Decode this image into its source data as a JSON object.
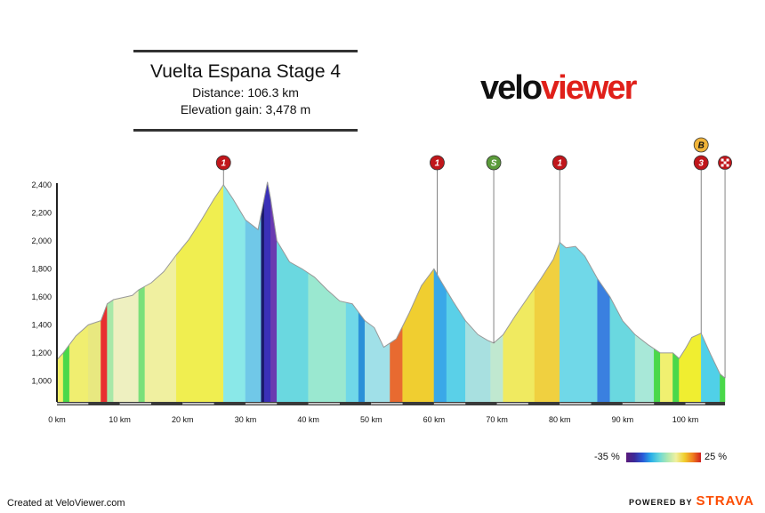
{
  "header": {
    "title": "Vuelta Espana Stage 4",
    "distance": "Distance: 106.3 km",
    "elevation": "Elevation gain: 3,478 m"
  },
  "brand": {
    "part1": "velo",
    "part2": "viewer"
  },
  "legend": {
    "min_label": "-35 %",
    "max_label": "25 %"
  },
  "footer": {
    "created": "Created at VeloViewer.com",
    "powered": "POWERED BY",
    "strava": "STRAVA"
  },
  "colors": {
    "kom_marker": "#c0161b",
    "sprint_marker": "#5a9a3a",
    "bonus_marker": "#f0b43a",
    "profile_outline": "#999999"
  },
  "chart_data": {
    "type": "area",
    "title": "",
    "xlabel": "",
    "ylabel": "",
    "xlim": [
      0,
      107
    ],
    "ylim": [
      850,
      2450
    ],
    "x_ticks": [
      0,
      10,
      20,
      30,
      40,
      50,
      60,
      70,
      80,
      90,
      100
    ],
    "x_tick_labels": [
      "0 km",
      "10 km",
      "20 km",
      "30 km",
      "40 km",
      "50 km",
      "60 km",
      "70 km",
      "80 km",
      "90 km",
      "100 km"
    ],
    "y_ticks": [
      1000,
      1200,
      1400,
      1600,
      1800,
      2000,
      2200,
      2400
    ],
    "y_tick_labels": [
      "1,000",
      "1,200",
      "1,400",
      "1,600",
      "1,800",
      "2,000",
      "2,200",
      "2,400"
    ],
    "profile": {
      "distance_km": [
        0,
        1,
        3,
        5,
        7,
        8,
        9,
        11,
        12,
        13,
        15,
        17,
        19,
        21,
        23,
        25,
        26.5,
        28,
        30,
        32,
        33.5,
        34,
        35,
        37,
        39,
        41,
        43,
        45,
        47,
        49,
        50.5,
        52,
        54,
        56,
        58,
        60,
        61,
        63,
        65,
        67,
        68.5,
        69.5,
        71,
        73,
        75,
        77,
        79,
        80,
        81,
        82.5,
        84,
        86,
        88,
        90,
        92,
        94,
        96,
        98,
        99,
        100,
        101,
        102.5,
        104,
        105.5,
        106.3
      ],
      "elevation_m": [
        1150,
        1200,
        1320,
        1400,
        1430,
        1550,
        1580,
        1600,
        1610,
        1650,
        1700,
        1780,
        1900,
        2010,
        2150,
        2300,
        2400,
        2300,
        2150,
        2080,
        2420,
        2300,
        2000,
        1850,
        1800,
        1740,
        1650,
        1570,
        1550,
        1430,
        1380,
        1240,
        1300,
        1480,
        1680,
        1800,
        1720,
        1570,
        1430,
        1330,
        1290,
        1270,
        1330,
        1470,
        1600,
        1730,
        1870,
        1990,
        1950,
        1960,
        1890,
        1730,
        1600,
        1430,
        1330,
        1260,
        1200,
        1200,
        1160,
        1230,
        1310,
        1340,
        1190,
        1050,
        1020
      ]
    },
    "gradient_bands": [
      {
        "from": 0,
        "to": 1,
        "color": "#f4f06a"
      },
      {
        "from": 1,
        "to": 2,
        "color": "#4ad84a"
      },
      {
        "from": 2,
        "to": 5,
        "color": "#f0ee70"
      },
      {
        "from": 5,
        "to": 7,
        "color": "#e8e880"
      },
      {
        "from": 7,
        "to": 8,
        "color": "#e83030"
      },
      {
        "from": 8,
        "to": 9,
        "color": "#a8e8a8"
      },
      {
        "from": 9,
        "to": 13,
        "color": "#eef0c0"
      },
      {
        "from": 13,
        "to": 14,
        "color": "#7ae07a"
      },
      {
        "from": 14,
        "to": 19,
        "color": "#f0f0a0"
      },
      {
        "from": 19,
        "to": 26.5,
        "color": "#f0ee50"
      },
      {
        "from": 26.5,
        "to": 30,
        "color": "#8ae8e8"
      },
      {
        "from": 30,
        "to": 32.5,
        "color": "#70c8e8"
      },
      {
        "from": 32.5,
        "to": 33,
        "color": "#1a1a6a"
      },
      {
        "from": 33,
        "to": 34,
        "color": "#3a30b8"
      },
      {
        "from": 34,
        "to": 35,
        "color": "#6a3ab0"
      },
      {
        "from": 35,
        "to": 40,
        "color": "#6ad8e0"
      },
      {
        "from": 40,
        "to": 46,
        "color": "#9ae8d0"
      },
      {
        "from": 46,
        "to": 48,
        "color": "#70d8e8"
      },
      {
        "from": 48,
        "to": 49,
        "color": "#2a90d8"
      },
      {
        "from": 49,
        "to": 53,
        "color": "#a0e0e8"
      },
      {
        "from": 53,
        "to": 55,
        "color": "#e86a30"
      },
      {
        "from": 55,
        "to": 60,
        "color": "#f0ce30"
      },
      {
        "from": 60,
        "to": 62,
        "color": "#3aa8e8"
      },
      {
        "from": 62,
        "to": 65,
        "color": "#5ad0e8"
      },
      {
        "from": 65,
        "to": 69,
        "color": "#a8e0e0"
      },
      {
        "from": 69,
        "to": 71,
        "color": "#c0e8d0"
      },
      {
        "from": 71,
        "to": 76,
        "color": "#f0ea60"
      },
      {
        "from": 76,
        "to": 80,
        "color": "#f0d040"
      },
      {
        "from": 80,
        "to": 86,
        "color": "#70d8e8"
      },
      {
        "from": 86,
        "to": 88,
        "color": "#3a80e0"
      },
      {
        "from": 88,
        "to": 92,
        "color": "#6ad8e0"
      },
      {
        "from": 92,
        "to": 95,
        "color": "#a8e8d8"
      },
      {
        "from": 95,
        "to": 96,
        "color": "#4ad84a"
      },
      {
        "from": 96,
        "to": 98,
        "color": "#f0f070"
      },
      {
        "from": 98,
        "to": 99,
        "color": "#4ad84a"
      },
      {
        "from": 99,
        "to": 102.5,
        "color": "#f0ee30"
      },
      {
        "from": 102.5,
        "to": 105.5,
        "color": "#50d0e8"
      },
      {
        "from": 105.5,
        "to": 106.3,
        "color": "#4ad84a"
      }
    ],
    "markers": [
      {
        "km": 26.5,
        "label": "1",
        "kind": "kom"
      },
      {
        "km": 60.5,
        "label": "1",
        "kind": "kom"
      },
      {
        "km": 69.5,
        "label": "S",
        "kind": "sprint"
      },
      {
        "km": 80,
        "label": "1",
        "kind": "kom"
      },
      {
        "km": 102.5,
        "label": "3",
        "kind": "kom"
      },
      {
        "km": 102.5,
        "label": "B",
        "kind": "bonus"
      },
      {
        "km": 106.3,
        "label": "",
        "kind": "finish"
      }
    ]
  }
}
